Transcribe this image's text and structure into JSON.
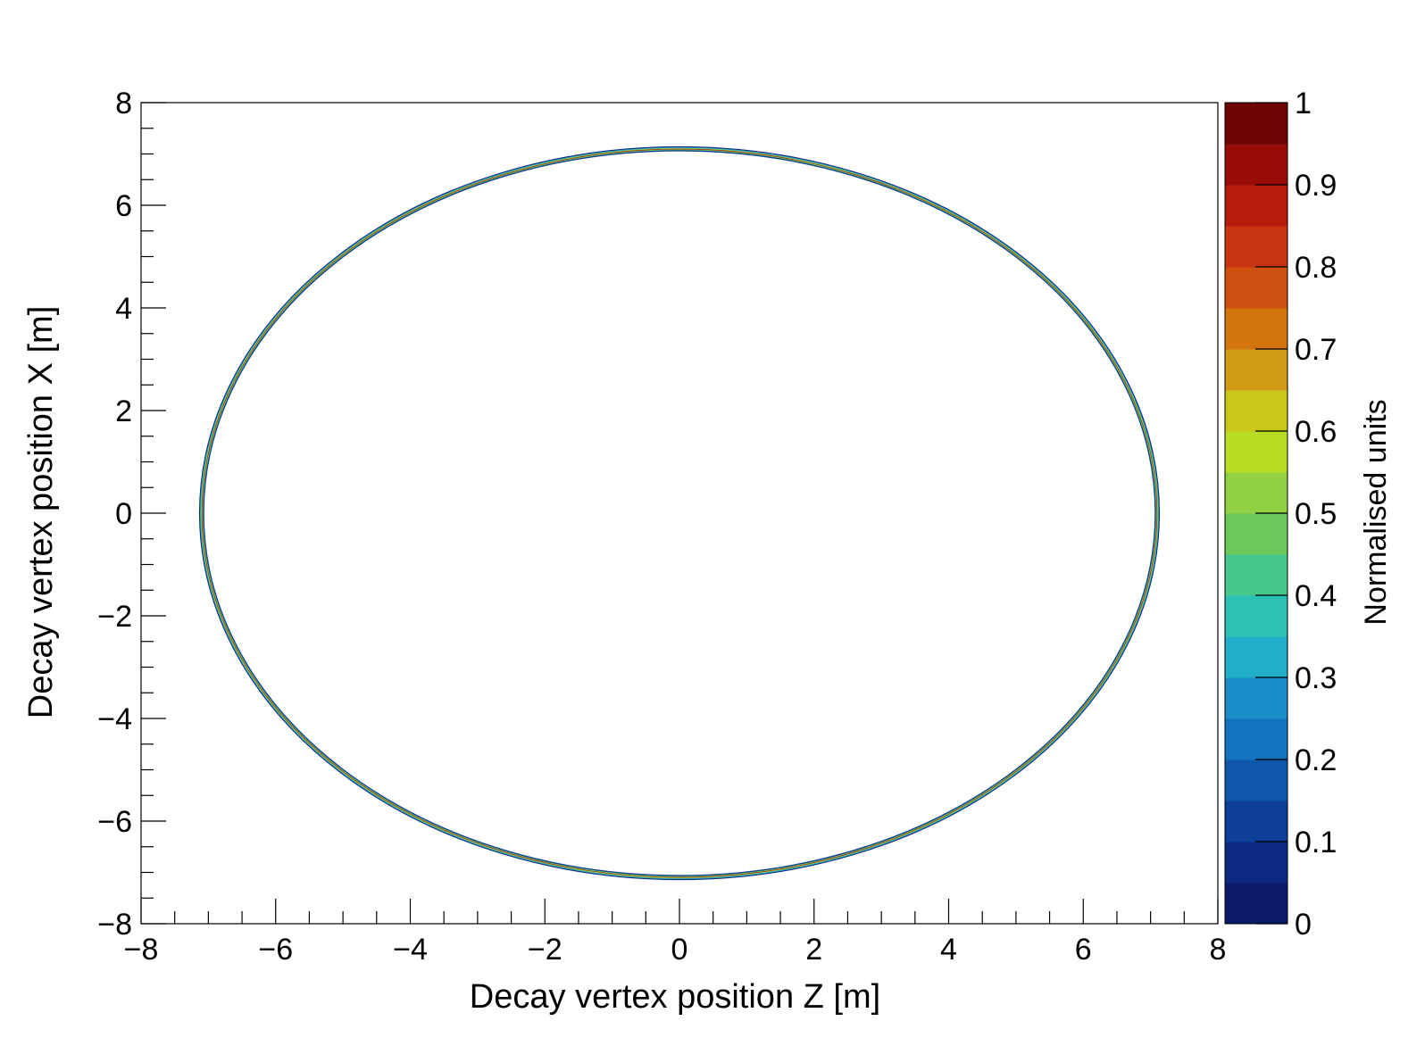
{
  "chart_data": {
    "type": "heatmap",
    "title": "",
    "xlabel": "Decay vertex position Z [m]",
    "ylabel": "Decay vertex position X [m]",
    "zlabel": "Normalised units",
    "xlim": [
      -8,
      8
    ],
    "ylim": [
      -8,
      8
    ],
    "zlim": [
      0,
      1
    ],
    "x_ticks": [
      "−8",
      "−6",
      "−4",
      "−2",
      "0",
      "2",
      "4",
      "6",
      "8"
    ],
    "y_ticks": [
      "8",
      "6",
      "4",
      "2",
      "0",
      "−2",
      "−4",
      "−6",
      "−8"
    ],
    "z_ticks": [
      "1",
      "0.9",
      "0.8",
      "0.7",
      "0.6",
      "0.5",
      "0.4",
      "0.3",
      "0.2",
      "0.1",
      "0"
    ],
    "grid": false,
    "structure": {
      "shape": "ring",
      "center": [
        0,
        0
      ],
      "radius": 7.1,
      "ring_value": 1.0
    },
    "palette": [
      "#0c1a6b",
      "#0d2a82",
      "#0d3f96",
      "#0f57aa",
      "#1273be",
      "#1b8dc9",
      "#20aec8",
      "#2bc1b3",
      "#46c78b",
      "#6ac95a",
      "#92d044",
      "#b9dd25",
      "#c9c71a",
      "#d09a15",
      "#d4740f",
      "#cf5010",
      "#c93410",
      "#b51c0d",
      "#980d08",
      "#6e0505"
    ]
  }
}
